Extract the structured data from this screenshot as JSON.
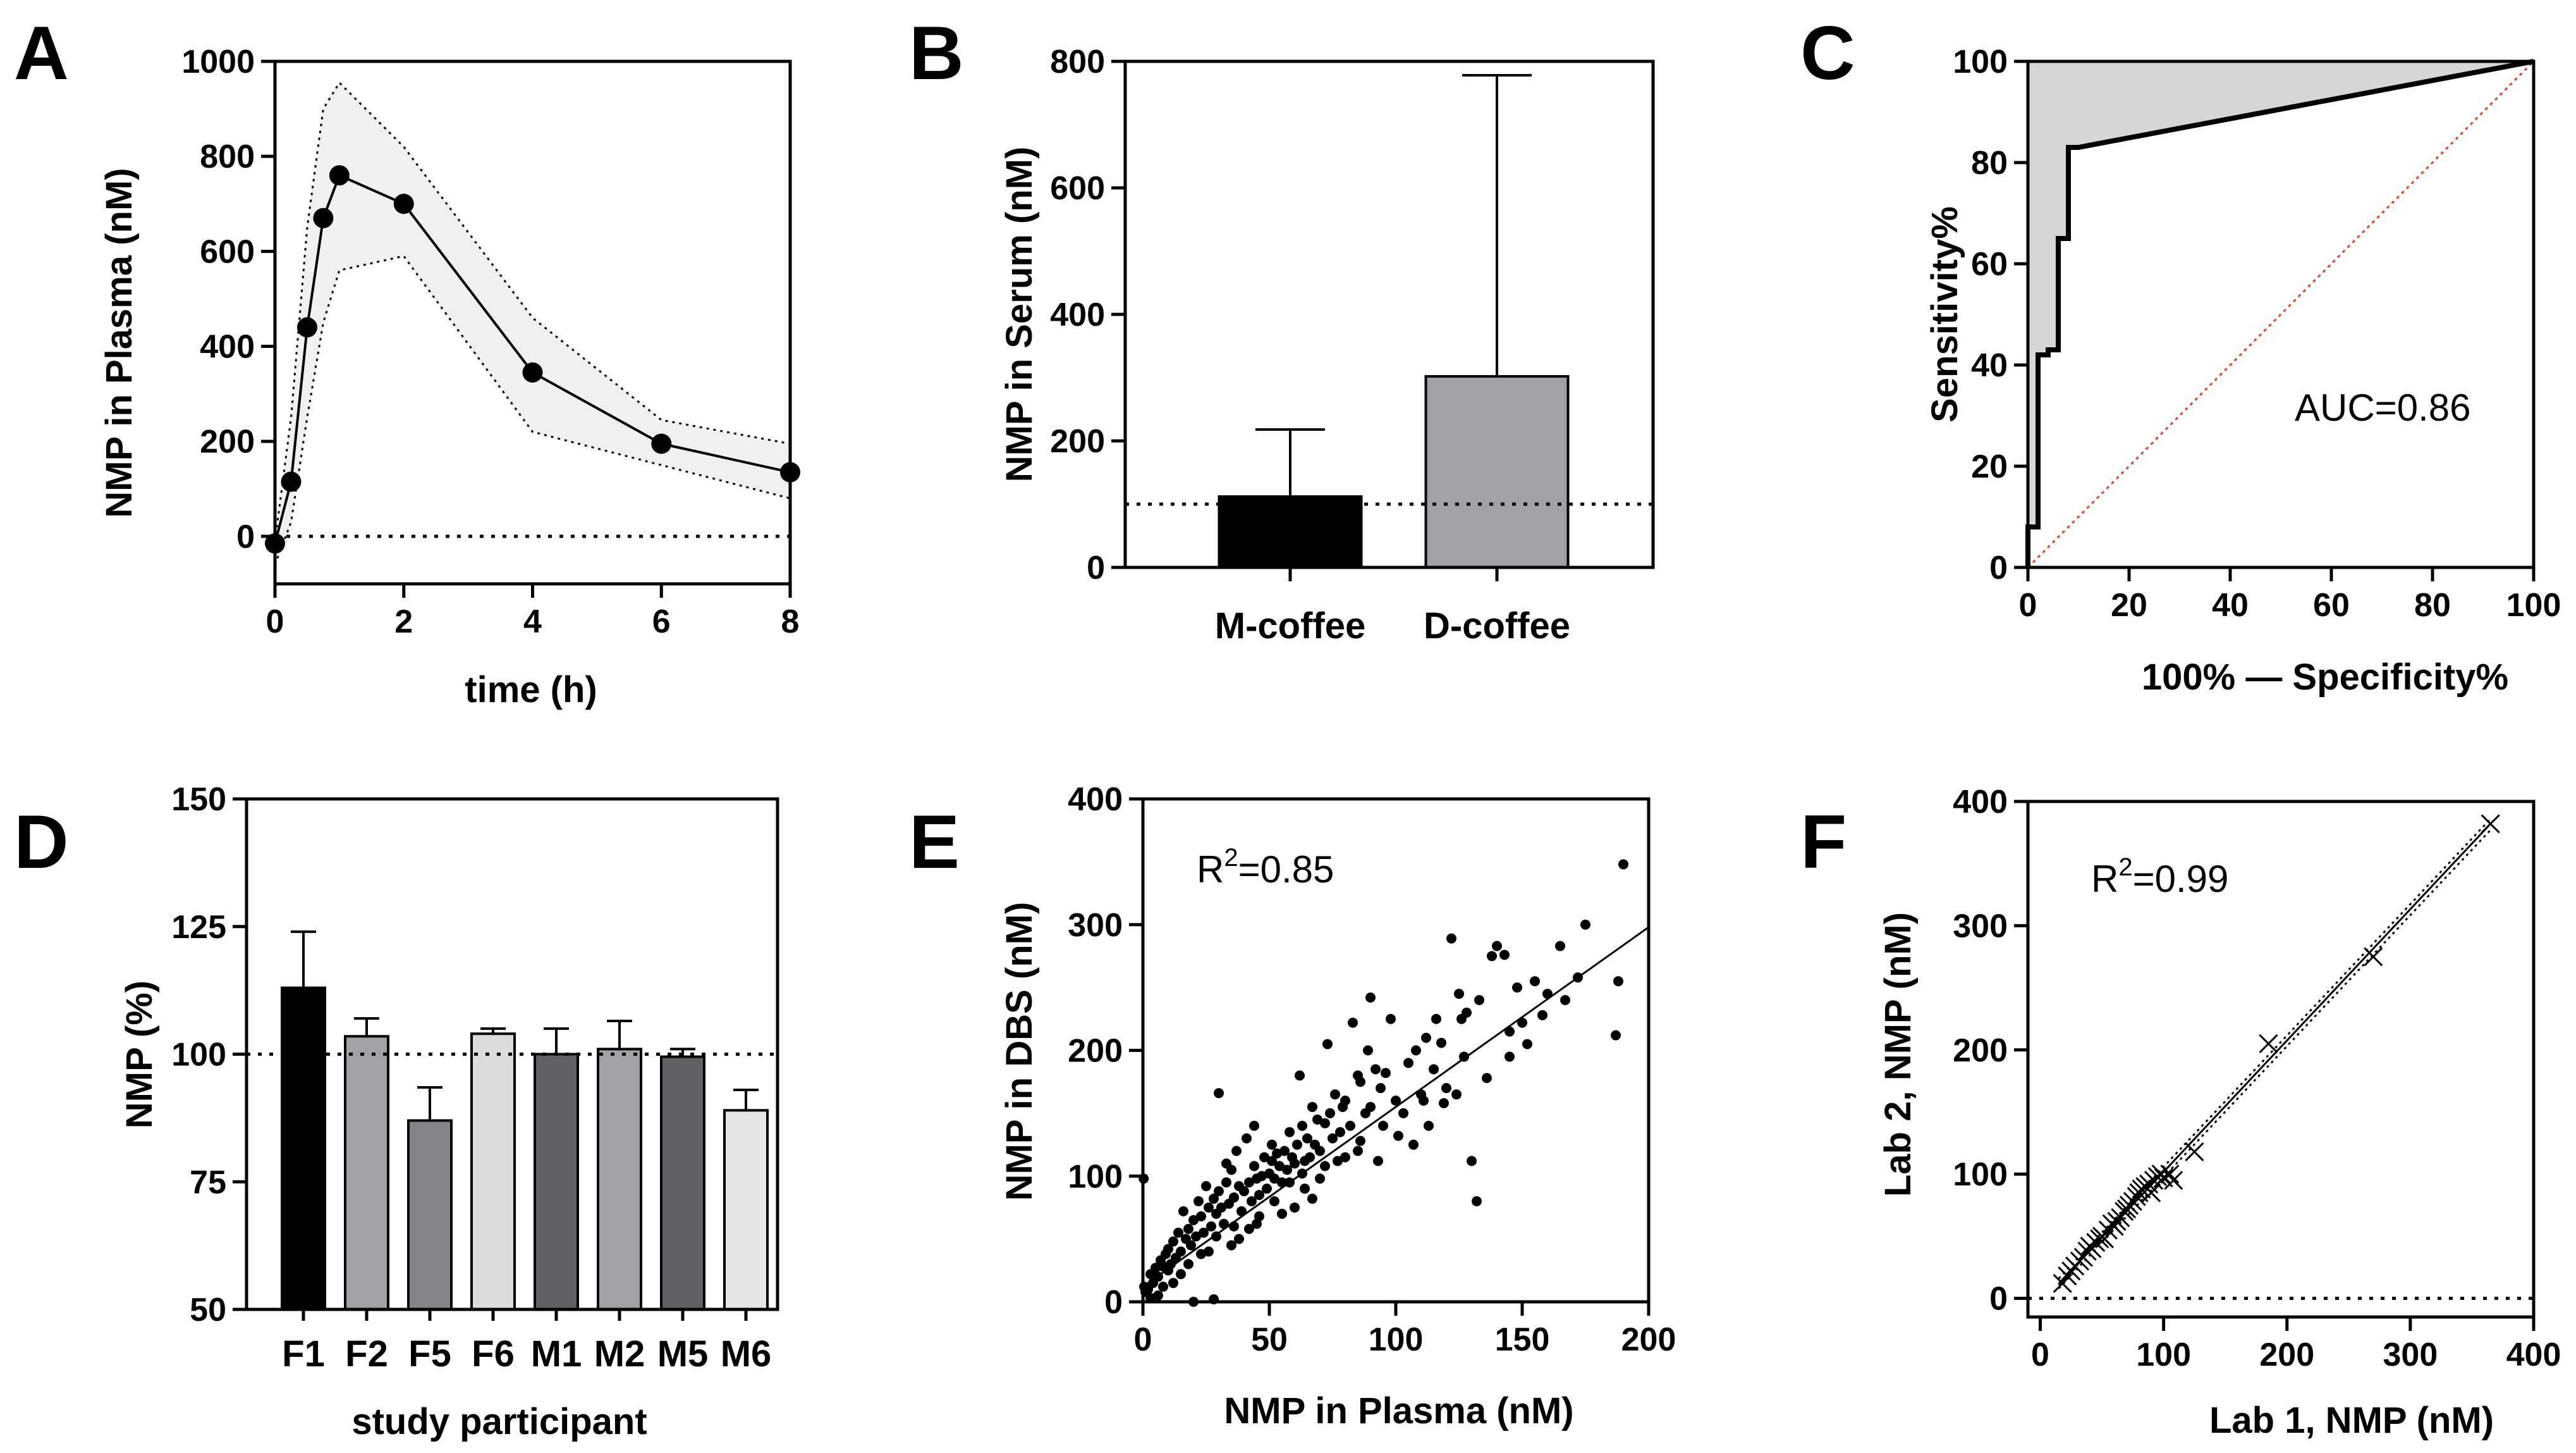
{
  "chart_data": [
    {
      "panel": "A",
      "type": "line",
      "xlabel": "time (h)",
      "ylabel": "NMP in Plasma (nM)",
      "xlim": [
        0,
        8
      ],
      "ylim": [
        -100,
        1000
      ],
      "xticks": [
        "0",
        "2",
        "4",
        "6",
        "8"
      ],
      "yticks": [
        "0",
        "200",
        "400",
        "600",
        "800",
        "1000"
      ],
      "reference_line": 0,
      "series": [
        {
          "name": "mean",
          "x": [
            0,
            0.25,
            0.5,
            0.75,
            1,
            2,
            4,
            6,
            8
          ],
          "y": [
            -15,
            115,
            440,
            670,
            760,
            700,
            345,
            195,
            135
          ]
        },
        {
          "name": "upper",
          "x": [
            0,
            0.25,
            0.5,
            0.75,
            1,
            2,
            4,
            6,
            8
          ],
          "y": [
            -10,
            250,
            650,
            900,
            955,
            820,
            460,
            245,
            195
          ]
        },
        {
          "name": "lower",
          "x": [
            0,
            0.25,
            0.5,
            0.75,
            1,
            2,
            4,
            6,
            8
          ],
          "y": [
            -60,
            30,
            250,
            450,
            560,
            590,
            220,
            150,
            80
          ]
        }
      ]
    },
    {
      "panel": "B",
      "type": "bar",
      "xlabel": "",
      "ylabel": "NMP in Serum (nM)",
      "ylim": [
        0,
        800
      ],
      "yticks": [
        "0",
        "200",
        "400",
        "600",
        "800"
      ],
      "reference_line": 100,
      "categories": [
        "M-coffee",
        "D-coffee"
      ],
      "values": [
        112,
        302
      ],
      "errors": [
        218,
        778
      ],
      "colors": [
        "#000000",
        "#a0a0a5"
      ]
    },
    {
      "panel": "C",
      "type": "line",
      "xlabel": "100% — Specificity%",
      "ylabel": "Sensitivity%",
      "xlim": [
        0,
        100
      ],
      "ylim": [
        0,
        100
      ],
      "xticks": [
        "0",
        "20",
        "40",
        "60",
        "80",
        "100"
      ],
      "yticks": [
        "0",
        "20",
        "40",
        "60",
        "80",
        "100"
      ],
      "annotation": "AUC=0.86",
      "series": [
        {
          "name": "ROC",
          "x": [
            0,
            0,
            2,
            2,
            4,
            4,
            6,
            6,
            8,
            8,
            10,
            10,
            100
          ],
          "y": [
            0,
            8,
            8,
            42,
            42,
            43,
            43,
            65,
            65,
            83,
            83,
            83,
            100
          ]
        },
        {
          "name": "reference",
          "x": [
            0,
            100
          ],
          "y": [
            0,
            100
          ]
        }
      ]
    },
    {
      "panel": "D",
      "type": "bar",
      "xlabel": "study participant",
      "ylabel": "NMP (%)",
      "ylim": [
        50,
        150
      ],
      "yticks": [
        "50",
        "75",
        "100",
        "125",
        "150"
      ],
      "reference_line": 100,
      "categories": [
        "F1",
        "F2",
        "F5",
        "F6",
        "M1",
        "M2",
        "M5",
        "M6"
      ],
      "values": [
        113,
        103.5,
        87,
        104,
        100,
        101,
        99.5,
        89
      ],
      "errors": [
        124,
        107,
        93.5,
        105,
        105,
        106.5,
        101,
        93
      ],
      "colors": [
        "#000000",
        "#a0a0a5",
        "#838388",
        "#dcdcdc",
        "#606065",
        "#a0a0a5",
        "#606065",
        "#e6e6e6"
      ]
    },
    {
      "panel": "E",
      "type": "scatter",
      "xlabel": "NMP in Plasma (nM)",
      "ylabel": "NMP in DBS (nM)",
      "xlim": [
        0,
        200
      ],
      "ylim": [
        0,
        400
      ],
      "xticks": [
        "0",
        "50",
        "100",
        "150",
        "200"
      ],
      "yticks": [
        "0",
        "100",
        "200",
        "300",
        "400"
      ],
      "annotation": {
        "prefix": "R",
        "sup": "2",
        "suffix": "=0.85"
      },
      "fit_line": {
        "x": [
          0,
          200
        ],
        "y": [
          12,
          298
        ]
      },
      "points": [
        [
          190,
          348
        ],
        [
          188,
          255
        ],
        [
          187,
          212
        ],
        [
          175,
          300
        ],
        [
          172,
          258
        ],
        [
          167,
          240
        ],
        [
          165,
          283
        ],
        [
          160,
          245
        ],
        [
          155,
          255
        ],
        [
          150,
          222
        ],
        [
          148,
          250
        ],
        [
          145,
          215
        ],
        [
          143,
          276
        ],
        [
          140,
          283
        ],
        [
          138,
          275
        ],
        [
          133,
          240
        ],
        [
          132,
          80
        ],
        [
          130,
          112
        ],
        [
          128,
          230
        ],
        [
          127,
          195
        ],
        [
          126,
          225
        ],
        [
          125,
          245
        ],
        [
          122,
          289
        ],
        [
          120,
          170
        ],
        [
          118,
          206
        ],
        [
          116,
          225
        ],
        [
          115,
          185
        ],
        [
          112,
          210
        ],
        [
          110,
          165
        ],
        [
          108,
          200
        ],
        [
          105,
          190
        ],
        [
          100,
          160
        ],
        [
          98,
          225
        ],
        [
          96,
          182
        ],
        [
          94,
          170
        ],
        [
          92,
          185
        ],
        [
          90,
          242
        ],
        [
          90,
          155
        ],
        [
          89,
          200
        ],
        [
          88,
          150
        ],
        [
          86,
          175
        ],
        [
          85,
          180
        ],
        [
          83,
          222
        ],
        [
          82,
          140
        ],
        [
          80,
          160
        ],
        [
          79,
          155
        ],
        [
          78,
          135
        ],
        [
          76,
          165
        ],
        [
          75,
          130
        ],
        [
          74,
          150
        ],
        [
          73,
          205
        ],
        [
          72,
          142
        ],
        [
          70,
          120
        ],
        [
          69,
          145
        ],
        [
          68,
          125
        ],
        [
          67,
          155
        ],
        [
          66,
          115
        ],
        [
          65,
          130
        ],
        [
          64,
          112
        ],
        [
          63,
          140
        ],
        [
          62,
          180
        ],
        [
          61,
          125
        ],
        [
          60,
          110
        ],
        [
          59,
          115
        ],
        [
          58,
          135
        ],
        [
          57,
          105
        ],
        [
          56,
          120
        ],
        [
          55,
          95
        ],
        [
          54,
          108
        ],
        [
          53,
          118
        ],
        [
          52,
          98
        ],
        [
          51,
          112
        ],
        [
          50,
          102
        ],
        [
          49,
          90
        ],
        [
          48,
          115
        ],
        [
          47,
          100
        ],
        [
          46,
          85
        ],
        [
          45,
          98
        ],
        [
          44,
          108
        ],
        [
          43,
          80
        ],
        [
          42,
          95
        ],
        [
          41,
          130
        ],
        [
          40,
          88
        ],
        [
          39,
          72
        ],
        [
          38,
          92
        ],
        [
          37,
          120
        ],
        [
          36,
          83
        ],
        [
          35,
          105
        ],
        [
          34,
          78
        ],
        [
          33,
          95
        ],
        [
          32,
          62
        ],
        [
          31,
          75
        ],
        [
          30,
          88
        ],
        [
          30,
          166
        ],
        [
          29,
          70
        ],
        [
          28,
          82
        ],
        [
          27,
          60
        ],
        [
          26,
          75
        ],
        [
          25,
          92
        ],
        [
          24,
          55
        ],
        [
          23,
          68
        ],
        [
          22,
          80
        ],
        [
          21,
          52
        ],
        [
          20,
          65
        ],
        [
          19,
          45
        ],
        [
          18,
          58
        ],
        [
          17,
          50
        ],
        [
          16,
          72
        ],
        [
          15,
          40
        ],
        [
          14,
          55
        ],
        [
          13,
          35
        ],
        [
          12,
          48
        ],
        [
          11,
          30
        ],
        [
          10,
          42
        ],
        [
          10,
          25
        ],
        [
          9,
          38
        ],
        [
          8,
          28
        ],
        [
          7,
          33
        ],
        [
          6,
          20
        ],
        [
          5,
          27
        ],
        [
          4,
          15
        ],
        [
          3,
          22
        ],
        [
          2,
          10
        ],
        [
          1,
          8
        ],
        [
          0.5,
          12
        ],
        [
          0.3,
          98
        ],
        [
          28,
          2
        ],
        [
          35,
          45
        ],
        [
          20,
          0
        ],
        [
          42,
          58
        ],
        [
          55,
          70
        ],
        [
          64,
          90
        ],
        [
          72,
          108
        ],
        [
          80,
          115
        ],
        [
          95,
          140
        ],
        [
          103,
          150
        ],
        [
          107,
          125
        ],
        [
          113,
          140
        ],
        [
          85,
          120
        ],
        [
          58,
          95
        ],
        [
          46,
          68
        ],
        [
          38,
          50
        ],
        [
          26,
          40
        ],
        [
          15,
          22
        ],
        [
          12,
          15
        ],
        [
          33,
          110
        ],
        [
          44,
          140
        ],
        [
          51,
          125
        ],
        [
          63,
          102
        ],
        [
          77,
          112
        ],
        [
          86,
          128
        ],
        [
          93,
          112
        ],
        [
          101,
          132
        ],
        [
          111,
          160
        ],
        [
          119,
          158
        ],
        [
          124,
          165
        ],
        [
          136,
          178
        ],
        [
          145,
          195
        ],
        [
          152,
          205
        ],
        [
          158,
          228
        ],
        [
          70,
          98
        ],
        [
          67,
          82
        ],
        [
          60,
          75
        ],
        [
          52,
          80
        ],
        [
          45,
          62
        ],
        [
          36,
          60
        ],
        [
          29,
          52
        ],
        [
          23,
          38
        ],
        [
          18,
          30
        ],
        [
          8,
          12
        ],
        [
          6,
          5
        ],
        [
          3,
          3
        ]
      ]
    },
    {
      "panel": "F",
      "type": "scatter",
      "xlabel": "Lab 1, NMP (nM)",
      "ylabel": "Lab 2, NMP (nM)",
      "xlim": [
        -10,
        400
      ],
      "ylim": [
        -15,
        400
      ],
      "xticks": [
        "0",
        "100",
        "200",
        "300",
        "400"
      ],
      "yticks": [
        "0",
        "100",
        "200",
        "300",
        "400"
      ],
      "reference_line": 0,
      "annotation": {
        "prefix": "R",
        "sup": "2",
        "suffix": "=0.99"
      },
      "fit_line": {
        "x": [
          15,
          365
        ],
        "y": [
          12,
          382
        ]
      },
      "ci_upper": {
        "x": [
          15,
          365
        ],
        "y": [
          16,
          386
        ]
      },
      "ci_lower": {
        "x": [
          15,
          365
        ],
        "y": [
          8,
          377
        ]
      },
      "points": [
        [
          18,
          12
        ],
        [
          22,
          18
        ],
        [
          25,
          22
        ],
        [
          28,
          26
        ],
        [
          32,
          30
        ],
        [
          35,
          33
        ],
        [
          38,
          38
        ],
        [
          40,
          42
        ],
        [
          42,
          40
        ],
        [
          45,
          45
        ],
        [
          48,
          48
        ],
        [
          50,
          50
        ],
        [
          52,
          48
        ],
        [
          55,
          55
        ],
        [
          58,
          60
        ],
        [
          60,
          58
        ],
        [
          62,
          62
        ],
        [
          65,
          65
        ],
        [
          68,
          70
        ],
        [
          70,
          72
        ],
        [
          72,
          75
        ],
        [
          75,
          78
        ],
        [
          78,
          82
        ],
        [
          80,
          85
        ],
        [
          82,
          88
        ],
        [
          85,
          90
        ],
        [
          88,
          92
        ],
        [
          90,
          85
        ],
        [
          92,
          95
        ],
        [
          95,
          98
        ],
        [
          98,
          100
        ],
        [
          100,
          97
        ],
        [
          105,
          100
        ],
        [
          108,
          95
        ],
        [
          125,
          118
        ],
        [
          185,
          205
        ],
        [
          270,
          275
        ],
        [
          365,
          382
        ]
      ]
    }
  ]
}
